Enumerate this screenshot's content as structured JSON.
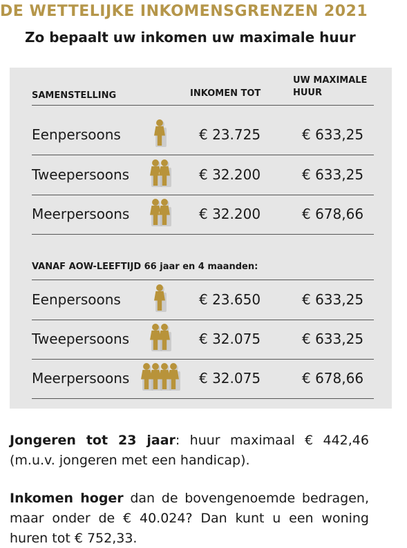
{
  "header": {
    "title": "DE WETTELIJKE INKOMENSGRENZEN 2021",
    "subtitle": "Zo bepaalt uw inkomen uw maximale huur"
  },
  "table": {
    "columns": [
      "SAMENSTELLING",
      "INKOMEN TOT",
      "UW MAXIMALE HUUR"
    ],
    "rows": [
      [
        "Eenpersoons",
        "€ 23.725",
        "€ 633,25"
      ],
      [
        "Tweepersoons",
        "€ 32.200",
        "€ 633,25"
      ],
      [
        "Meerpersoons",
        "€ 32.200",
        "€ 678,66"
      ]
    ],
    "section_label": "VANAF AOW-LEEFTIJD 66 jaar en 4 maanden:",
    "senior_rows": [
      [
        "Eenpersoons",
        "€ 23.650",
        "€ 633,25"
      ],
      [
        "Tweepersoons",
        "€ 32.075",
        "€ 633,25"
      ],
      [
        "Meerpersoons",
        "€ 32.075",
        "€ 678,66"
      ]
    ]
  },
  "notes": [
    {
      "bold": "Jongeren tot 23 jaar",
      "text": ": huur maximaal € 442,46 (m.u.v. jongeren met een handicap)."
    },
    {
      "bold": "Inkomen hoger",
      "text": " dan de bovengenoemde bedragen, maar onder de € 40.024? Dan kunt u een woning huren tot € 752,33."
    }
  ]
}
